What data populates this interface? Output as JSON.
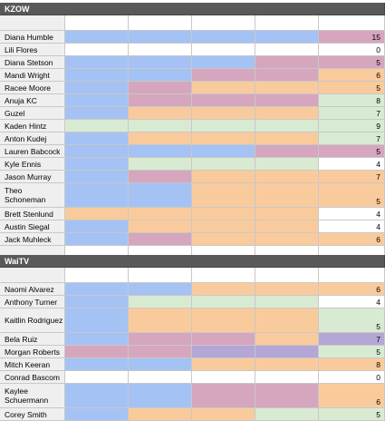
{
  "colors": {
    "blue": "#a4c2f4",
    "pink": "#d5a6bd",
    "orange": "#f9cb9c",
    "green": "#d9ead3",
    "purple": "#b4a7d6",
    "white": "#ffffff",
    "header": "#595959",
    "name_col": "#efefef"
  },
  "sections": [
    {
      "title": "KZOW",
      "rows": [
        {
          "name": "Diana Humble",
          "cells": [
            "blue",
            "blue",
            "blue",
            "blue",
            "pink"
          ],
          "score": "15"
        },
        {
          "name": "Lili Flores",
          "cells": [
            "white",
            "white",
            "white",
            "white",
            "white"
          ],
          "score": "0"
        },
        {
          "name": "Diana Stetson",
          "cells": [
            "blue",
            "blue",
            "blue",
            "pink",
            "pink"
          ],
          "score": "5"
        },
        {
          "name": "Mandi Wright",
          "cells": [
            "blue",
            "blue",
            "pink",
            "pink",
            "orange"
          ],
          "score": "6"
        },
        {
          "name": "Racee Moore",
          "cells": [
            "blue",
            "pink",
            "orange",
            "orange",
            "orange"
          ],
          "score": "5"
        },
        {
          "name": "Anuja KC",
          "cells": [
            "blue",
            "pink",
            "pink",
            "pink",
            "green"
          ],
          "score": "8"
        },
        {
          "name": "Guzel",
          "cells": [
            "blue",
            "orange",
            "orange",
            "orange",
            "green"
          ],
          "score": "7"
        },
        {
          "name": "Kaden Hintz",
          "cells": [
            "green",
            "green",
            "green",
            "green",
            "green"
          ],
          "score": "9"
        },
        {
          "name": "Anton Kudej",
          "cells": [
            "blue",
            "orange",
            "orange",
            "orange",
            "green"
          ],
          "score": "7"
        },
        {
          "name": "Lauren Babcock",
          "cells": [
            "blue",
            "blue",
            "blue",
            "pink",
            "pink"
          ],
          "score": "5"
        },
        {
          "name": "Kyle Ennis",
          "cells": [
            "blue",
            "green",
            "green",
            "green",
            "white"
          ],
          "score": "4"
        },
        {
          "name": "Jason Murray",
          "cells": [
            "blue",
            "pink",
            "orange",
            "orange",
            "orange"
          ],
          "score": "7"
        },
        {
          "name": "Theo Schoneman",
          "cells": [
            "blue",
            "blue",
            "orange",
            "orange",
            "orange"
          ],
          "score": "5"
        },
        {
          "name": "Brett Stenlund",
          "cells": [
            "orange",
            "orange",
            "orange",
            "orange",
            "white"
          ],
          "score": "4"
        },
        {
          "name": "Austin Siegal",
          "cells": [
            "blue",
            "orange",
            "orange",
            "orange",
            "white"
          ],
          "score": "4"
        },
        {
          "name": "Jack Muhleck",
          "cells": [
            "blue",
            "pink",
            "orange",
            "orange",
            "orange"
          ],
          "score": "6"
        }
      ]
    },
    {
      "title": "WaiTV",
      "rows": [
        {
          "name": "Naomi Alvarez",
          "cells": [
            "blue",
            "blue",
            "orange",
            "orange",
            "orange"
          ],
          "score": "6"
        },
        {
          "name": "Anthony Turner",
          "cells": [
            "blue",
            "green",
            "green",
            "green",
            "white"
          ],
          "score": "4"
        },
        {
          "name": "Kaitlin Rodriguez",
          "cells": [
            "blue",
            "orange",
            "orange",
            "orange",
            "green"
          ],
          "score": "5"
        },
        {
          "name": "Bela Ruiz",
          "cells": [
            "blue",
            "pink",
            "pink",
            "orange",
            "purple"
          ],
          "score": "7"
        },
        {
          "name": "Morgan Roberts",
          "cells": [
            "pink",
            "pink",
            "purple",
            "purple",
            "green"
          ],
          "score": "5"
        },
        {
          "name": "Mitch Keeran",
          "cells": [
            "blue",
            "blue",
            "orange",
            "orange",
            "orange"
          ],
          "score": "8"
        },
        {
          "name": "Conrad Bascom",
          "cells": [
            "white",
            "white",
            "white",
            "white",
            "white"
          ],
          "score": "0"
        },
        {
          "name": "Kaylee Schuermann",
          "cells": [
            "blue",
            "blue",
            "pink",
            "pink",
            "orange"
          ],
          "score": "6"
        },
        {
          "name": "Corey Smith",
          "cells": [
            "blue",
            "orange",
            "orange",
            "green",
            "green"
          ],
          "score": "5"
        }
      ]
    }
  ]
}
